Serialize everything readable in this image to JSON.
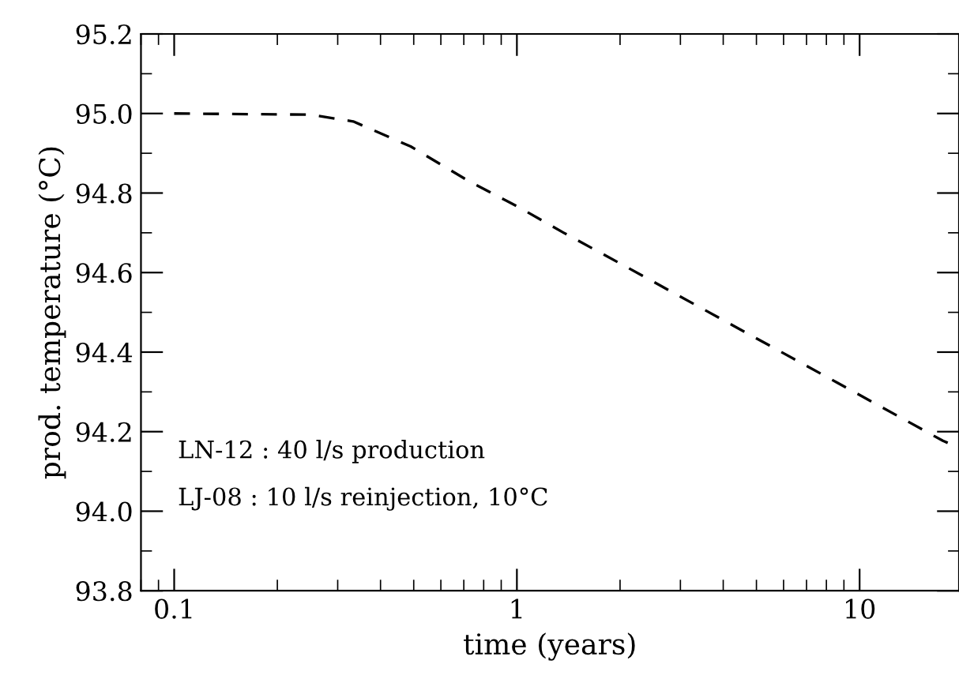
{
  "chart_data": {
    "type": "line",
    "xlabel": "time (years)",
    "ylabel": "prod. temperature (°C)",
    "log": "x",
    "xlim": [
      0.08,
      19.5
    ],
    "xticks": [
      0.1,
      1,
      10
    ],
    "ylim": [
      93.8,
      95.2
    ],
    "yticks": [
      93.8,
      {
        "value": 94,
        "label": "94.0"
      },
      94.2,
      94.4,
      94.6,
      94.8,
      {
        "value": 95,
        "label": "95.0"
      },
      95.2
    ],
    "grid": false,
    "line_style": "dashed",
    "marker": "none",
    "annotations": [
      "LN-12 : 40 l/s production",
      "LJ-08 : 10 l/s reinjection, 10°C"
    ],
    "series": [
      {
        "color": "#000000",
        "x": [
          0.1,
          0.25,
          0.333,
          0.49,
          0.724,
          1.01,
          1.37,
          2.1,
          4.25,
          8.61,
          17.5,
          19.5
        ],
        "values": [
          95.0,
          94.997,
          94.98,
          94.917,
          94.83,
          94.765,
          94.7,
          94.613,
          94.468,
          94.323,
          94.177,
          94.16
        ]
      }
    ]
  }
}
